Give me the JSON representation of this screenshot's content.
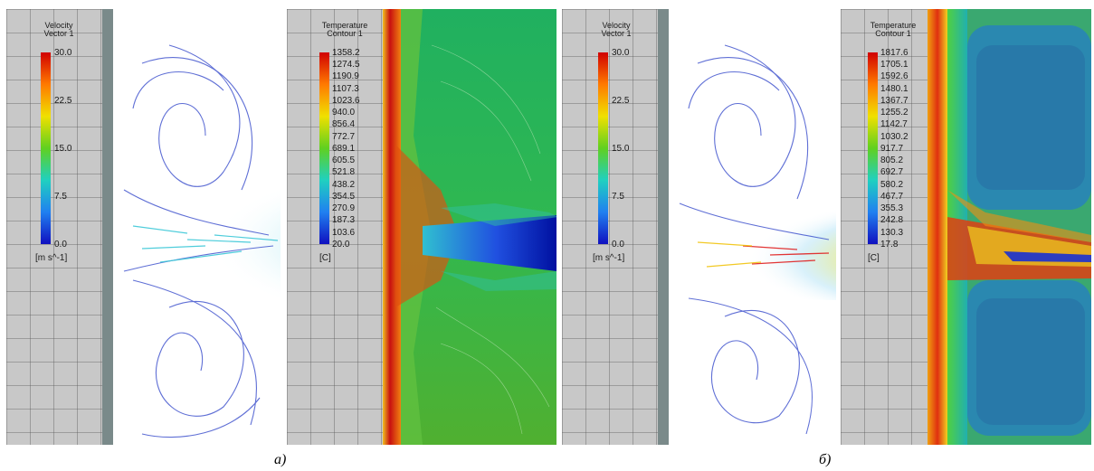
{
  "figure": {
    "caption_a": "а)",
    "caption_b": "б)"
  },
  "panels": [
    {
      "kind": "velocity",
      "legend": {
        "title_line1": "Velocity",
        "title_line2": "Vector 1",
        "ticks": [
          "30.0",
          "22.5",
          "15.0",
          "7.5",
          "0.0"
        ],
        "unit": "[m s^-1]"
      }
    },
    {
      "kind": "temperature",
      "legend": {
        "title_line1": "Temperature",
        "title_line2": "Contour 1",
        "ticks": [
          "1358.2",
          "1274.5",
          "1190.9",
          "1107.3",
          "1023.6",
          "940.0",
          "856.4",
          "772.7",
          "689.1",
          "605.5",
          "521.8",
          "438.2",
          "354.5",
          "270.9",
          "187.3",
          "103.6",
          "20.0"
        ],
        "unit": "[C]"
      }
    },
    {
      "kind": "velocity",
      "legend": {
        "title_line1": "Velocity",
        "title_line2": "Vector 1",
        "ticks": [
          "30.0",
          "22.5",
          "15.0",
          "7.5",
          "0.0"
        ],
        "unit": "[m s^-1]"
      }
    },
    {
      "kind": "temperature",
      "legend": {
        "title_line1": "Temperature",
        "title_line2": "Contour 1",
        "ticks": [
          "1817.6",
          "1705.1",
          "1592.6",
          "1480.1",
          "1367.7",
          "1255.2",
          "1142.7",
          "1030.2",
          "917.7",
          "805.2",
          "692.7",
          "580.2",
          "467.7",
          "355.3",
          "242.8",
          "130.3",
          "17.8"
        ],
        "unit": "[C]"
      }
    }
  ]
}
